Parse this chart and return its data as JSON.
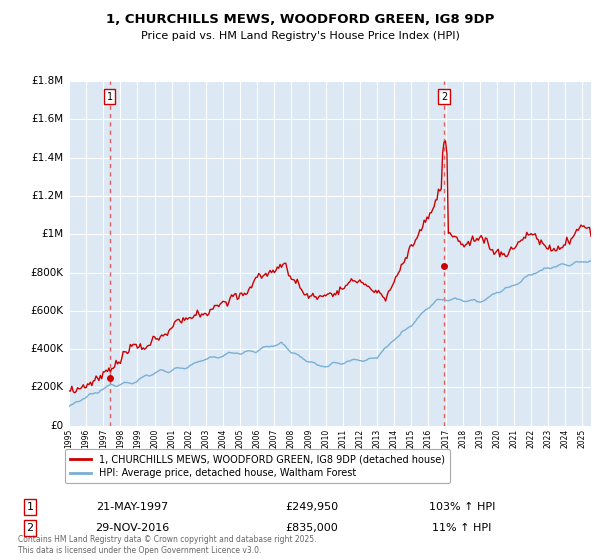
{
  "title_line1": "1, CHURCHILLS MEWS, WOODFORD GREEN, IG8 9DP",
  "title_line2": "Price paid vs. HM Land Registry's House Price Index (HPI)",
  "xlim": [
    1995.0,
    2025.5
  ],
  "ylim": [
    0,
    1800000
  ],
  "yticks": [
    0,
    200000,
    400000,
    600000,
    800000,
    1000000,
    1200000,
    1400000,
    1600000,
    1800000
  ],
  "ytick_labels": [
    "£0",
    "£200K",
    "£400K",
    "£600K",
    "£800K",
    "£1M",
    "£1.2M",
    "£1.4M",
    "£1.6M",
    "£1.8M"
  ],
  "plot_bg_color": "#dce9f5",
  "grid_color": "#ffffff",
  "line1_color": "#cc0000",
  "line2_color": "#7aafd4",
  "sale1_x": 1997.388,
  "sale1_y": 249950,
  "sale1_label": "1",
  "sale2_x": 2016.912,
  "sale2_y": 835000,
  "sale2_label": "2",
  "vline_color": "#e06060",
  "legend_line1": "1, CHURCHILLS MEWS, WOODFORD GREEN, IG8 9DP (detached house)",
  "legend_line2": "HPI: Average price, detached house, Waltham Forest",
  "annotation1_date": "21-MAY-1997",
  "annotation1_price": "£249,950",
  "annotation1_hpi": "103% ↑ HPI",
  "annotation2_date": "29-NOV-2016",
  "annotation2_price": "£835,000",
  "annotation2_hpi": "11% ↑ HPI",
  "footer": "Contains HM Land Registry data © Crown copyright and database right 2025.\nThis data is licensed under the Open Government Licence v3.0.",
  "xticks": [
    1995,
    1996,
    1997,
    1998,
    1999,
    2000,
    2001,
    2002,
    2003,
    2004,
    2005,
    2006,
    2007,
    2008,
    2009,
    2010,
    2011,
    2012,
    2013,
    2014,
    2015,
    2016,
    2017,
    2018,
    2019,
    2020,
    2021,
    2022,
    2023,
    2024,
    2025
  ]
}
